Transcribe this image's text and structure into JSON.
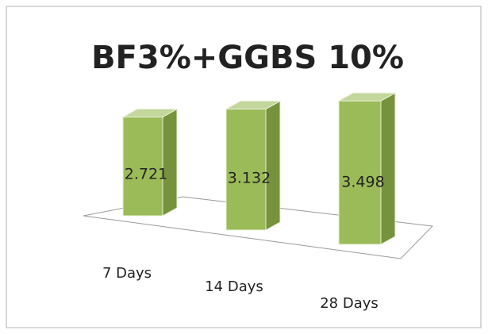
{
  "chart_data": {
    "type": "bar3d",
    "title": "BF3%+GGBS 10%",
    "categories": [
      "7 Days",
      "14 Days",
      "28 Days"
    ],
    "values": [
      2.721,
      3.132,
      3.498
    ],
    "color": "#9bbb59"
  }
}
